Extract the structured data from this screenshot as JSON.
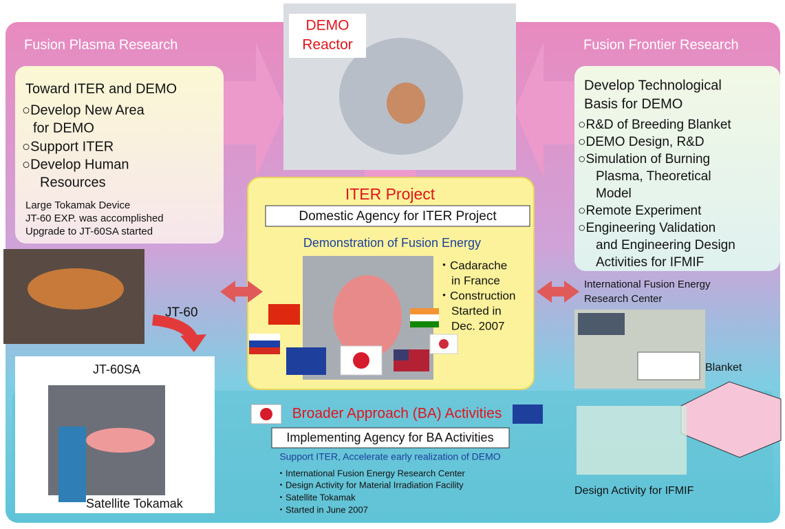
{
  "demo": {
    "label_lines": [
      "DEMO",
      "Reactor"
    ]
  },
  "left": {
    "header": "Fusion Plasma Research",
    "panel_title": "Toward ITER and DEMO",
    "items": [
      [
        "○Develop New Area",
        "for DEMO"
      ],
      [
        "○Support ITER"
      ],
      [
        "○Develop Human",
        "Resources"
      ]
    ],
    "notes": [
      "Large Tokamak Device",
      "JT-60 EXP. was accomplished",
      "Upgrade to JT-60SA started"
    ],
    "jt60_label": "JT-60",
    "jt60sa_label": "JT-60SA",
    "satellite_label": "Satellite Tokamak"
  },
  "iter": {
    "title": "ITER Project",
    "agency": "Domestic Agency for ITER Project",
    "subtitle": "Demonstration of Fusion Energy",
    "bullets": [
      [
        "・Cadarache",
        "in France"
      ],
      [
        "・Construction",
        "Started in",
        "Dec. 2007"
      ]
    ]
  },
  "right": {
    "header": "Fusion Frontier Research",
    "panel_title": [
      "Develop Technological",
      "Basis for DEMO"
    ],
    "items": [
      [
        "○R&D of Breeding Blanket"
      ],
      [
        "○DEMO Design, R&D"
      ],
      [
        "○Simulation of Burning",
        "Plasma, Theoretical",
        "Model"
      ],
      [
        "○Remote Experiment"
      ],
      [
        "○Engineering Validation",
        "and Engineering Design",
        "Activities for IFMIF"
      ]
    ],
    "center_label": [
      "International Fusion Energy",
      "Research Center"
    ],
    "blanket_label": "Blanket",
    "ifmif_label": "Design Activity for IFMIF"
  },
  "ba": {
    "title": "Broader Approach (BA) Activities",
    "agency": "Implementing Agency for BA Activities",
    "subtitle": "Support ITER, Accelerate early realization of DEMO",
    "bullets": [
      "・International Fusion Energy Research Center",
      "・Design Activity for Material Irradiation Facility",
      "・Satellite Tokamak",
      "・Started in June 2007"
    ]
  }
}
